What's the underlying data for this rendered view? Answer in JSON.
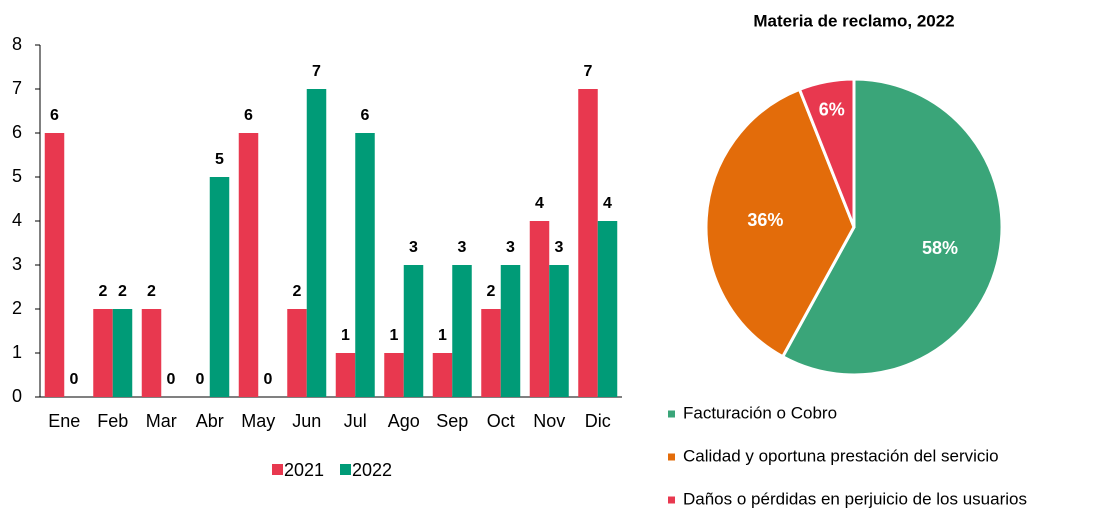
{
  "chart_data": [
    {
      "type": "bar",
      "categories": [
        "Ene",
        "Feb",
        "Mar",
        "Abr",
        "May",
        "Jun",
        "Jul",
        "Ago",
        "Sep",
        "Oct",
        "Nov",
        "Dic"
      ],
      "series": [
        {
          "name": "2021",
          "color": "#e8384f",
          "values": [
            6,
            2,
            2,
            0,
            6,
            2,
            1,
            1,
            1,
            2,
            4,
            7
          ]
        },
        {
          "name": "2022",
          "color": "#009b77",
          "values": [
            0,
            2,
            0,
            5,
            0,
            7,
            6,
            3,
            3,
            3,
            3,
            4
          ]
        }
      ],
      "ylim": [
        0,
        8
      ],
      "yticks": [
        0,
        1,
        2,
        3,
        4,
        5,
        6,
        7,
        8
      ],
      "grid": false,
      "legend": "bottom"
    },
    {
      "type": "pie",
      "title": "Materia de reclamo, 2022",
      "categories": [
        "Facturación o Cobro",
        "Calidad y oportuna prestación del servicio",
        "Daños o pérdidas en perjuicio de los usuarios"
      ],
      "values": [
        58,
        36,
        6
      ],
      "value_labels": [
        "58%",
        "36%",
        "6%"
      ],
      "colors": [
        "#3aa579",
        "#e36c0a",
        "#e8384f"
      ],
      "legend": "bottom"
    }
  ]
}
